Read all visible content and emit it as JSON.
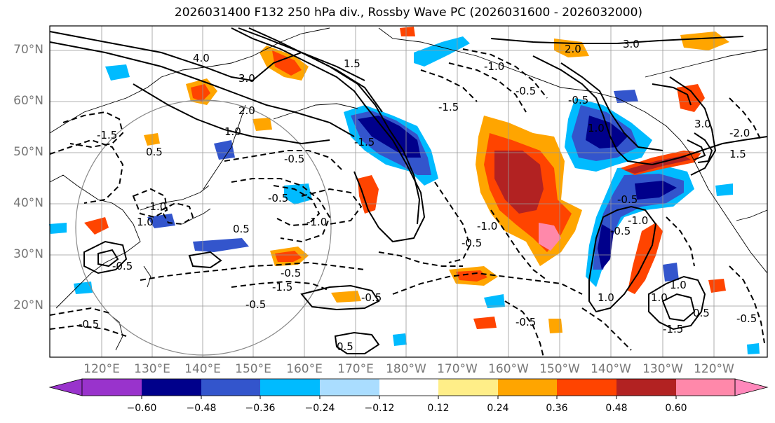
{
  "title": "2026031400 F132 250 hPa div., Rossby Wave PC (2026031600 - 2026032000)",
  "map": {
    "lat_labels": [
      "70°N",
      "60°N",
      "50°N",
      "40°N",
      "30°N",
      "20°N"
    ],
    "lon_labels": [
      "120°E",
      "130°E",
      "140°E",
      "150°E",
      "160°E",
      "170°E",
      "180°W",
      "170°W",
      "160°W",
      "150°W",
      "140°W",
      "130°W",
      "120°W"
    ],
    "contour_labels": [
      "3.0",
      "3.0",
      "4.0",
      "3.0",
      "2.0",
      "1.0",
      "1.5",
      "2.0",
      "1.0",
      "-1.0",
      "-0.5",
      "-1.5",
      "0.5",
      "-0.5",
      "-1.0",
      "-0.5",
      "-1.5",
      "-0.5",
      "1.0",
      "-1.0",
      "1.0",
      "-0.5",
      "-0.5",
      "-0.5",
      "-0.5",
      "-0.5",
      "0.5",
      "1.0",
      "1.0",
      "-1.5",
      "0.5",
      "-0.5",
      "-0.5",
      "-2.0",
      "-1.5",
      "1.5",
      "-0.5",
      "-0.5",
      "-0.5",
      "-1.0",
      "-1.0",
      "0.5",
      "-1.5"
    ]
  },
  "colorbar": {
    "tick_labels": [
      "−0.60",
      "−0.48",
      "−0.36",
      "−0.24",
      "−0.12",
      "0.12",
      "0.24",
      "0.36",
      "0.48",
      "0.60"
    ],
    "colors": [
      "#9933cc",
      "#00008b",
      "#3355cc",
      "#00bbff",
      "#aaddff",
      "#ffffff",
      "#ffee88",
      "#ffa500",
      "#ff4400",
      "#b22222",
      "#ff88aa",
      "#ff88bb"
    ]
  }
}
